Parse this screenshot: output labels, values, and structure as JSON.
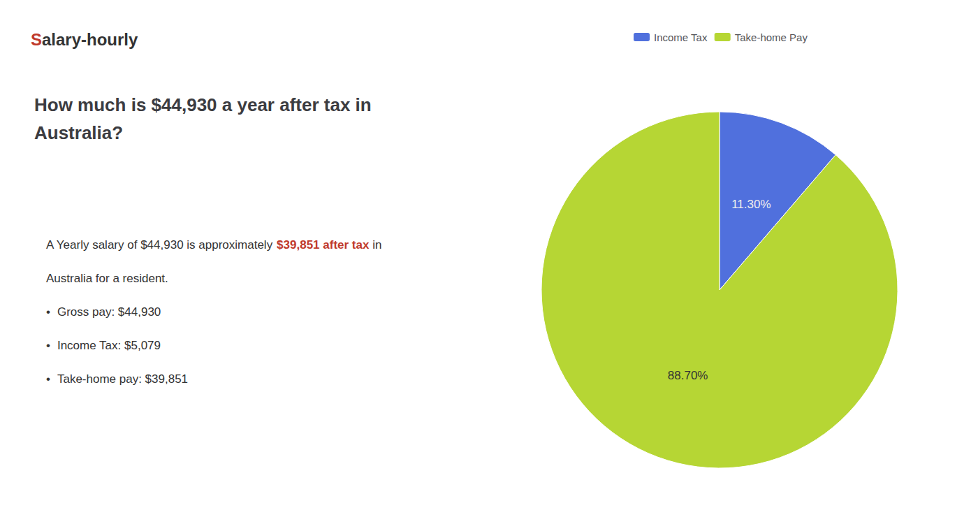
{
  "chart_data": {
    "type": "pie",
    "title": "How much is $44,930 a year after tax in\nAustralia?",
    "annotations": [
      [
        {
          "text": "S",
          "color": "#c0392b"
        },
        {
          "text": "alary-hourly"
        }
      ],
      [
        {
          "text": "A Yearly salary of $44,930 is approximately "
        },
        {
          "text": "$39,851 after tax",
          "color": "#c0392b"
        },
        {
          "text": " in"
        }
      ],
      [
        {
          "text": "Australia for a resident."
        }
      ],
      [
        {
          "text": "•"
        },
        {
          "text": "Gross pay: $44,930"
        }
      ],
      [
        {
          "text": "•"
        },
        {
          "text": "Income Tax: $5,079"
        }
      ],
      [
        {
          "text": "•"
        },
        {
          "text": "Take-home pay: $39,851"
        }
      ]
    ],
    "categories": [
      "Income Tax",
      "Take-home Pay"
    ],
    "values": [
      11.3,
      88.7
    ],
    "value_labels": [
      "11.30%",
      "88.70%"
    ],
    "data_labels": true,
    "legend": "top"
  }
}
